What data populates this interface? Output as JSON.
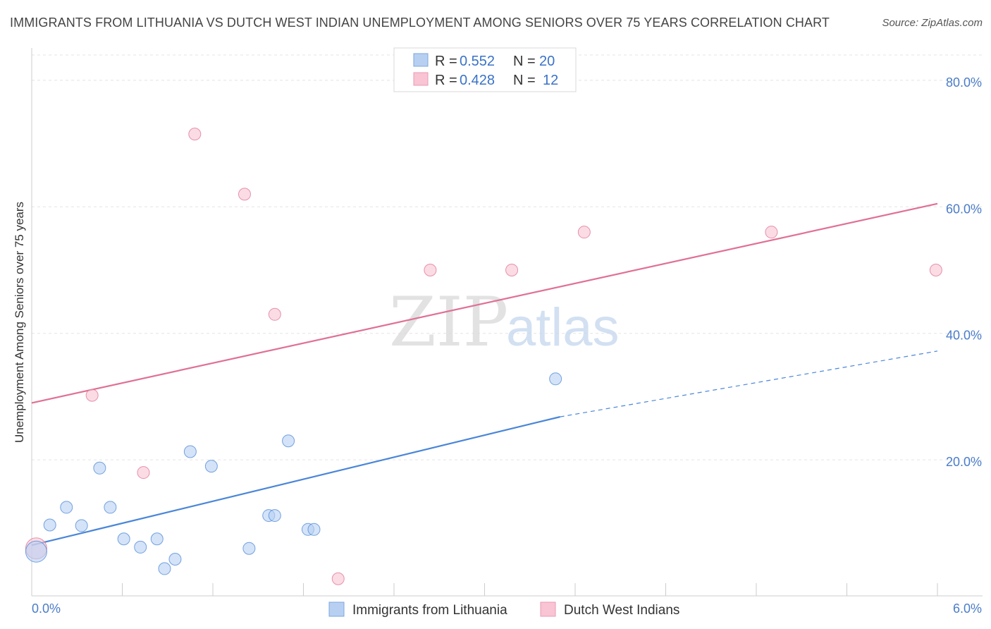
{
  "title": "IMMIGRANTS FROM LITHUANIA VS DUTCH WEST INDIAN UNEMPLOYMENT AMONG SENIORS OVER 75 YEARS CORRELATION CHART",
  "source": "Source: ZipAtlas.com",
  "watermark": {
    "zip": "ZIP",
    "atlas": "atlas"
  },
  "chart_data": {
    "type": "scatter",
    "title": "IMMIGRANTS FROM LITHUANIA VS DUTCH WEST INDIAN UNEMPLOYMENT AMONG SENIORS OVER 75 YEARS CORRELATION CHART",
    "xlabel": "",
    "ylabel": "Unemployment Among Seniors over 75 years",
    "xlim": [
      0,
      6
    ],
    "ylim": [
      -1.5,
      84
    ],
    "x_tick_labels": [
      "0.0%",
      "6.0%"
    ],
    "y_ticks": [
      20,
      40,
      60,
      80
    ],
    "y_tick_labels": [
      "20.0%",
      "40.0%",
      "60.0%",
      "80.0%"
    ],
    "grid": true,
    "legend_position": "top-center",
    "series": [
      {
        "name": "Immigrants from Lithuania",
        "color": "#4a86d8",
        "fill": "#b7d0f2",
        "r_label": "R =",
        "r_value": "0.552",
        "n_label": "N =",
        "n_value": "20",
        "points": [
          [
            0.03,
            5.5
          ],
          [
            0.12,
            9.7
          ],
          [
            0.23,
            12.5
          ],
          [
            0.33,
            9.6
          ],
          [
            0.45,
            18.7
          ],
          [
            0.52,
            12.5
          ],
          [
            0.61,
            7.5
          ],
          [
            0.72,
            6.2
          ],
          [
            0.83,
            7.5
          ],
          [
            0.88,
            2.8
          ],
          [
            0.95,
            4.3
          ],
          [
            1.05,
            21.3
          ],
          [
            1.19,
            19.0
          ],
          [
            1.44,
            6.0
          ],
          [
            1.57,
            11.2
          ],
          [
            1.61,
            11.2
          ],
          [
            1.7,
            23.0
          ],
          [
            1.83,
            9.0
          ],
          [
            1.87,
            9.0
          ],
          [
            3.47,
            32.8
          ]
        ],
        "trend": {
          "x0": 0.0,
          "y0": 6.5,
          "x1": 3.5,
          "y1": 26.8,
          "dash_x1": 6.0,
          "dash_y1": 37.2
        }
      },
      {
        "name": "Dutch West Indians",
        "color": "#e07094",
        "fill": "#f9c4d4",
        "r_label": "R =",
        "r_value": "0.428",
        "n_label": "N =",
        "n_value": "12",
        "points": [
          [
            0.03,
            6.0
          ],
          [
            0.4,
            30.2
          ],
          [
            0.74,
            18.0
          ],
          [
            1.08,
            71.5
          ],
          [
            1.41,
            62.0
          ],
          [
            1.61,
            43.0
          ],
          [
            2.03,
            1.2
          ],
          [
            2.64,
            50.0
          ],
          [
            3.18,
            50.0
          ],
          [
            3.66,
            56.0
          ],
          [
            4.9,
            56.0
          ],
          [
            5.99,
            50.0
          ]
        ],
        "trend": {
          "x0": 0.0,
          "y0": 29.0,
          "x1": 6.0,
          "y1": 60.5
        }
      }
    ]
  }
}
